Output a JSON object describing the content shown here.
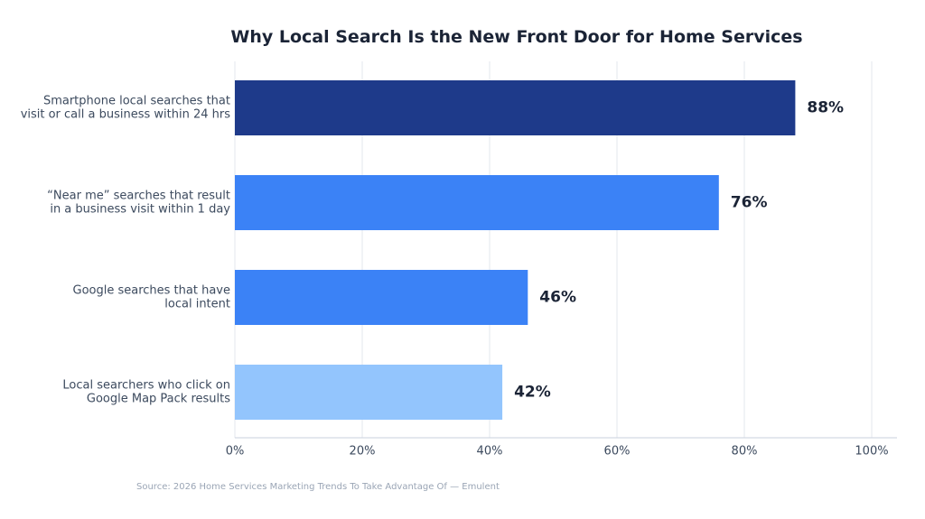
{
  "chart_data": {
    "type": "bar",
    "orientation": "horizontal",
    "title": "Why Local Search Is the New Front Door for Home Services",
    "categories": [
      [
        "Smartphone local searches that",
        "visit or call a business within 24 hrs"
      ],
      [
        "“Near me” searches that result",
        "in a business visit within 1 day"
      ],
      [
        "Google searches that have",
        "local intent"
      ],
      [
        "Local searchers who click on",
        "Google Map Pack results"
      ]
    ],
    "values": [
      88,
      76,
      46,
      42
    ],
    "data_labels": [
      "88%",
      "76%",
      "46%",
      "42%"
    ],
    "bar_colors": [
      "#1e3a8a",
      "#3b82f6",
      "#3b82f6",
      "#93c5fd"
    ],
    "xlim": [
      0,
      100
    ],
    "xticks": [
      0,
      20,
      40,
      60,
      80,
      100
    ],
    "xtick_labels": [
      "0%",
      "20%",
      "40%",
      "60%",
      "80%",
      "100%"
    ],
    "xlabel": "",
    "ylabel": "",
    "grid": true,
    "legend": "none"
  },
  "source": "Source: 2026 Home Services Marketing Trends To Take Advantage Of — Emulent",
  "colors": {
    "title": "#1b2436",
    "grid": "#e3e7ee",
    "axis": "#c9d2de",
    "label": "#3c4a5e",
    "source": "#9aa5b5"
  }
}
